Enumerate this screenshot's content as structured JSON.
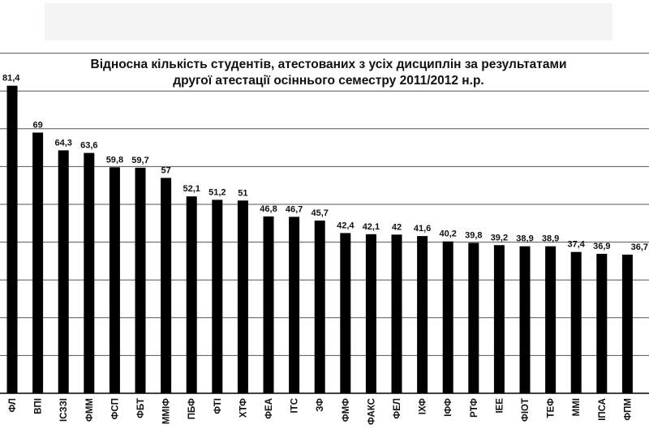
{
  "chart_data": {
    "type": "bar",
    "title_lines": [
      "Відносна кількість студентів, атестованих з усіх дисциплін за результатами",
      "другої атестації осіннього семестру 2011/2012 н.р."
    ],
    "categories": [
      "ФЛ",
      "ВПІ",
      "ІСЗЗІ",
      "ФММ",
      "ФСП",
      "ФБТ",
      "ММІФ",
      "ПБФ",
      "ФТІ",
      "ХТФ",
      "ФЕА",
      "ІТС",
      "ЗФ",
      "ФМФ",
      "ФАКС",
      "ФЕЛ",
      "ІХФ",
      "ІФФ",
      "РТФ",
      "ІЕЕ",
      "ФІОТ",
      "ТЕФ",
      "ММІ",
      "ІПСА",
      "ФПМ"
    ],
    "values": [
      81.4,
      69,
      64.3,
      63.6,
      59.8,
      59.7,
      57,
      52.1,
      51.2,
      51,
      46.8,
      46.7,
      45.7,
      42.4,
      42.1,
      42,
      41.6,
      40.2,
      39.8,
      39.2,
      38.9,
      38.9,
      37.4,
      36.9,
      36.7
    ],
    "value_labels": [
      "81,4",
      "69",
      "64,3",
      "63,6",
      "59,8",
      "59,7",
      "57",
      "52,1",
      "51,2",
      "51",
      "46,8",
      "46,7",
      "45,7",
      "42,4",
      "42,1",
      "42",
      "41,6",
      "40,2",
      "39,8",
      "39,2",
      "38,9",
      "38,9",
      "37,4",
      "36,9",
      "36,7"
    ],
    "ylim": [
      0,
      90
    ],
    "grid": true,
    "bar_color": "#000000",
    "grid_color": "#555555"
  }
}
